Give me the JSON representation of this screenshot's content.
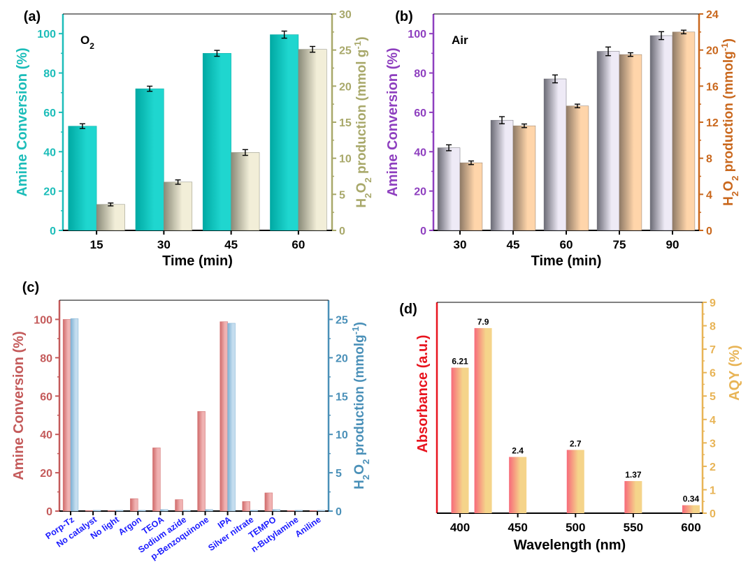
{
  "figure": {
    "panels": [
      {
        "id": "a",
        "panel_label": "(a)",
        "annotation": "O",
        "annotation_sub": "2",
        "left_color": "#1cbdb9",
        "right_color": "#a8a86a",
        "bar_left_colors": [
          "#00a9a3",
          "#1fd6cf"
        ],
        "bar_right_colors": [
          "#8a8a78",
          "#f2eed8"
        ],
        "xlabel": "Time (min)",
        "ylabel_left_parts": [
          {
            "t": "Amine Conversion (%)",
            "s": ""
          }
        ],
        "ylabel_right_parts": [
          {
            "t": "H",
            "s": ""
          },
          {
            "t": "2",
            "s": "sub"
          },
          {
            "t": "O",
            "s": ""
          },
          {
            "t": "2",
            "s": "sub"
          },
          {
            "t": " production (mmol g",
            "s": ""
          },
          {
            "t": "-1",
            "s": "sup"
          },
          {
            "t": ")",
            "s": ""
          }
        ],
        "left_ticks": [
          "0",
          "20",
          "40",
          "60",
          "80",
          "100"
        ],
        "right_ticks": [
          "0",
          "5",
          "10",
          "15",
          "20",
          "25",
          "30"
        ]
      },
      {
        "id": "b",
        "panel_label": "(b)",
        "annotation": "Air",
        "annotation_sub": "",
        "left_color": "#8e3fbf",
        "right_color": "#c9671c",
        "bar_left_colors": [
          "#6b6b75",
          "#eeeaf6"
        ],
        "bar_right_colors": [
          "#8f7a66",
          "#ffd5aa"
        ],
        "xlabel": "Time (min)",
        "ylabel_left_parts": [
          {
            "t": "Amine Conversion (%)",
            "s": ""
          }
        ],
        "ylabel_right_parts": [
          {
            "t": "H",
            "s": ""
          },
          {
            "t": "2",
            "s": "sub"
          },
          {
            "t": "O",
            "s": ""
          },
          {
            "t": "2",
            "s": "sub"
          },
          {
            "t": " production (mmolg",
            "s": ""
          },
          {
            "t": "-1",
            "s": "sup"
          },
          {
            "t": ")",
            "s": ""
          }
        ],
        "left_ticks": [
          "0",
          "20",
          "40",
          "60",
          "80",
          "100"
        ],
        "right_ticks": [
          "0",
          "4",
          "8",
          "12",
          "16",
          "20",
          "24"
        ]
      },
      {
        "id": "c",
        "panel_label": "(c)",
        "annotation": "",
        "annotation_sub": "",
        "left_color": "#c45a5a",
        "right_color": "#4a90b8",
        "bar_left_colors": [
          "#d06b6b",
          "#f0b2b2"
        ],
        "bar_right_colors": [
          "#7fb1d3",
          "#c4ddef"
        ],
        "xlabel": "",
        "ylabel_left_parts": [
          {
            "t": "Amine Conversion (%)",
            "s": ""
          }
        ],
        "ylabel_right_parts": [
          {
            "t": "H",
            "s": ""
          },
          {
            "t": "2",
            "s": "sub"
          },
          {
            "t": "O",
            "s": ""
          },
          {
            "t": "2",
            "s": "sub"
          },
          {
            "t": " production (mmolg",
            "s": ""
          },
          {
            "t": "-1",
            "s": "sup"
          },
          {
            "t": ")",
            "s": ""
          }
        ],
        "left_ticks": [
          "0",
          "20",
          "40",
          "60",
          "80",
          "100"
        ],
        "right_ticks": [
          "0",
          "5",
          "10",
          "15",
          "20",
          "25"
        ],
        "category_color": "#1a1aff"
      },
      {
        "id": "d",
        "panel_label": "(d)",
        "annotation": "",
        "annotation_sub": "",
        "left_color": "#e8141e",
        "right_color": "#e8b456",
        "bar_colors": [
          "#f76a7a",
          "#f5d48a"
        ],
        "xlabel": "Wavelength (nm)",
        "ylabel_left_parts": [
          {
            "t": "Absorbance (a.u.)",
            "s": ""
          }
        ],
        "ylabel_right_parts": [
          {
            "t": "AQY (%)",
            "s": ""
          }
        ],
        "left_ticks": [],
        "right_ticks": [
          "0",
          "1",
          "2",
          "3",
          "4",
          "5",
          "6",
          "7",
          "8",
          "9"
        ],
        "x_ticks": [
          "400",
          "450",
          "500",
          "550",
          "600"
        ]
      }
    ]
  },
  "chart_data": [
    {
      "type": "bar",
      "panel": "(a)",
      "annotation": "O2",
      "categories": [
        "15",
        "30",
        "45",
        "60"
      ],
      "xlabel": "Time (min)",
      "ylabel": "Amine Conversion (%)",
      "y2label": "H2O2 production (mmol g-1)",
      "ylim": [
        0,
        110
      ],
      "y2lim": [
        0,
        30
      ],
      "series": [
        {
          "axis": "left",
          "values": [
            53,
            72,
            90,
            99.5
          ],
          "errors": [
            1.2,
            1.3,
            1.5,
            1.8
          ]
        },
        {
          "axis": "right",
          "values": [
            3.6,
            6.7,
            10.8,
            25.1
          ],
          "errors": [
            0.2,
            0.3,
            0.4,
            0.4
          ]
        }
      ]
    },
    {
      "type": "bar",
      "panel": "(b)",
      "annotation": "Air",
      "categories": [
        "30",
        "45",
        "60",
        "75",
        "90"
      ],
      "xlabel": "Time (min)",
      "ylabel": "Amine Conversion (%)",
      "y2label": "H2O2 production (mmolg-1)",
      "ylim": [
        0,
        110
      ],
      "y2lim": [
        0,
        24
      ],
      "series": [
        {
          "axis": "left",
          "values": [
            42,
            56,
            77,
            91,
            99
          ],
          "errors": [
            1.5,
            1.8,
            2,
            2.2,
            2
          ]
        },
        {
          "axis": "right",
          "values": [
            7.5,
            11.6,
            13.8,
            19.5,
            22
          ],
          "errors": [
            0.2,
            0.2,
            0.2,
            0.2,
            0.2
          ]
        }
      ]
    },
    {
      "type": "bar",
      "panel": "(c)",
      "categories": [
        "Porp-Tz",
        "No catalyst",
        "No light",
        "Argon",
        "TEOA",
        "Sodium azide",
        "p-Benzoquinone",
        "IPA",
        "Silver nitrate",
        "TEMPO",
        "n-Butylamine",
        "Aniline"
      ],
      "ylabel": "Amine Conversion (%)",
      "y2label": "H2O2 production (mmolg-1)",
      "ylim": [
        0,
        110
      ],
      "y2lim": [
        0,
        27.5
      ],
      "series": [
        {
          "axis": "left",
          "values": [
            100,
            0.3,
            0.3,
            6.5,
            33,
            6,
            52,
            98.8,
            5,
            9.5,
            0.3,
            0.3
          ]
        },
        {
          "axis": "right",
          "values": [
            25.1,
            0.1,
            0.1,
            0.1,
            0.2,
            0.1,
            0.2,
            24.5,
            0.1,
            0.2,
            0.1,
            0.1
          ]
        }
      ]
    },
    {
      "type": "bar",
      "panel": "(d)",
      "xlabel": "Wavelength (nm)",
      "ylabel": "Absorbance (a.u.)",
      "y2label": "AQY (%)",
      "y2lim": [
        0,
        9
      ],
      "xlim": [
        380,
        610
      ],
      "x": [
        400,
        420,
        450,
        500,
        550,
        600
      ],
      "values": [
        6.21,
        7.9,
        2.4,
        2.7,
        1.37,
        0.34
      ],
      "data_labels": [
        "6.21",
        "7.9",
        "2.4",
        "2.7",
        "1.37",
        "0.34"
      ]
    }
  ]
}
